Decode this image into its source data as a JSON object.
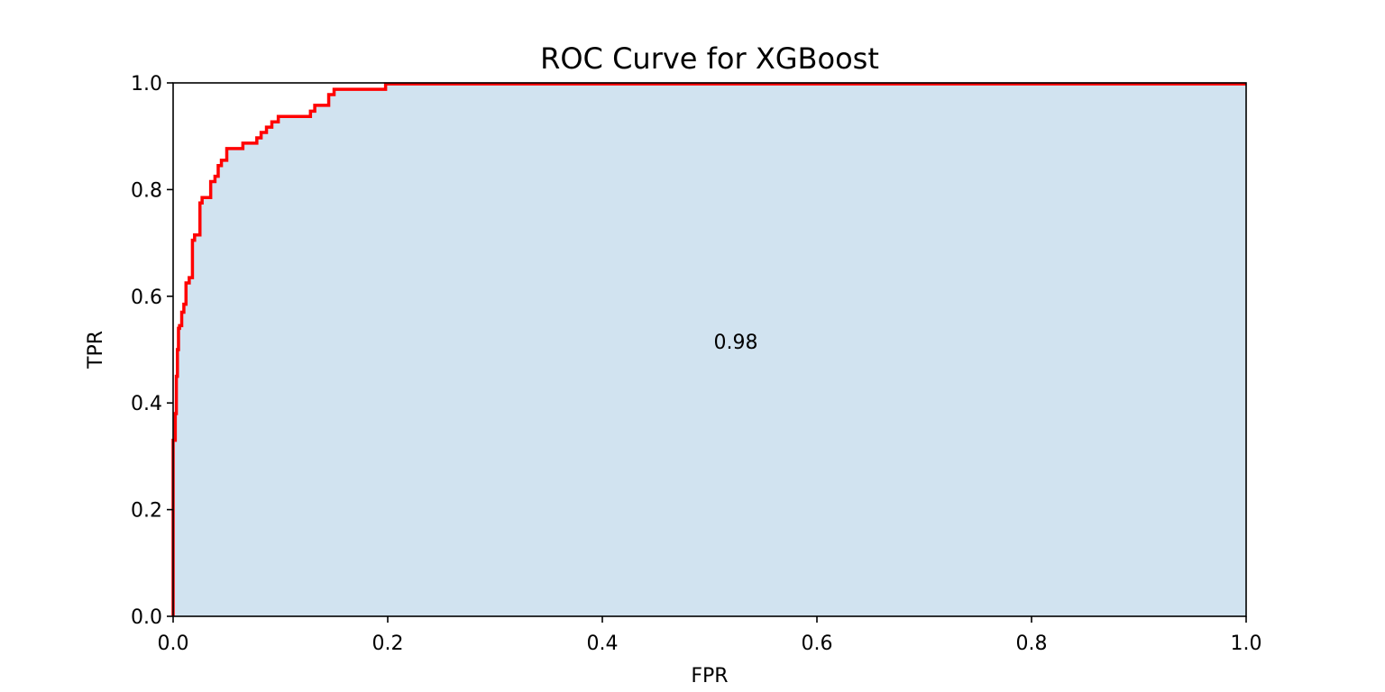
{
  "chart_data": {
    "type": "line",
    "title": "ROC Curve for XGBoost",
    "xlabel": "FPR",
    "ylabel": "TPR",
    "xlim": [
      0.0,
      1.0
    ],
    "ylim": [
      0.0,
      1.0
    ],
    "x_ticks": [
      "0.0",
      "0.2",
      "0.4",
      "0.6",
      "0.8",
      "1.0"
    ],
    "y_ticks": [
      "0.0",
      "0.2",
      "0.4",
      "0.6",
      "0.8",
      "1.0"
    ],
    "grid": false,
    "legend": "none",
    "annotation": {
      "text": "0.98",
      "x": 0.5,
      "y": 0.5
    },
    "colors": {
      "line": "#ff0000",
      "fill": "#d1e3f0",
      "axes": "#000000"
    },
    "series": [
      {
        "fill_under": true,
        "x": [
          0.0,
          0.0,
          0.002,
          0.002,
          0.003,
          0.003,
          0.004,
          0.004,
          0.005,
          0.005,
          0.006,
          0.006,
          0.008,
          0.008,
          0.01,
          0.01,
          0.012,
          0.012,
          0.015,
          0.015,
          0.018,
          0.018,
          0.02,
          0.02,
          0.025,
          0.025,
          0.027,
          0.027,
          0.035,
          0.035,
          0.039,
          0.039,
          0.042,
          0.042,
          0.045,
          0.045,
          0.05,
          0.05,
          0.065,
          0.065,
          0.078,
          0.078,
          0.082,
          0.082,
          0.087,
          0.087,
          0.092,
          0.092,
          0.098,
          0.098,
          0.115,
          0.115,
          0.128,
          0.128,
          0.132,
          0.132,
          0.145,
          0.145,
          0.15,
          0.15,
          0.198,
          0.198,
          1.0
        ],
        "y": [
          0.0,
          0.33,
          0.33,
          0.38,
          0.38,
          0.45,
          0.45,
          0.5,
          0.5,
          0.54,
          0.54,
          0.545,
          0.545,
          0.57,
          0.57,
          0.585,
          0.585,
          0.625,
          0.625,
          0.635,
          0.635,
          0.705,
          0.705,
          0.715,
          0.715,
          0.775,
          0.775,
          0.785,
          0.785,
          0.815,
          0.815,
          0.825,
          0.825,
          0.845,
          0.845,
          0.855,
          0.855,
          0.877,
          0.877,
          0.887,
          0.887,
          0.897,
          0.897,
          0.907,
          0.907,
          0.917,
          0.917,
          0.927,
          0.927,
          0.937,
          0.937,
          0.937,
          0.937,
          0.947,
          0.947,
          0.958,
          0.958,
          0.978,
          0.978,
          0.988,
          0.988,
          0.998,
          0.998
        ]
      }
    ]
  }
}
